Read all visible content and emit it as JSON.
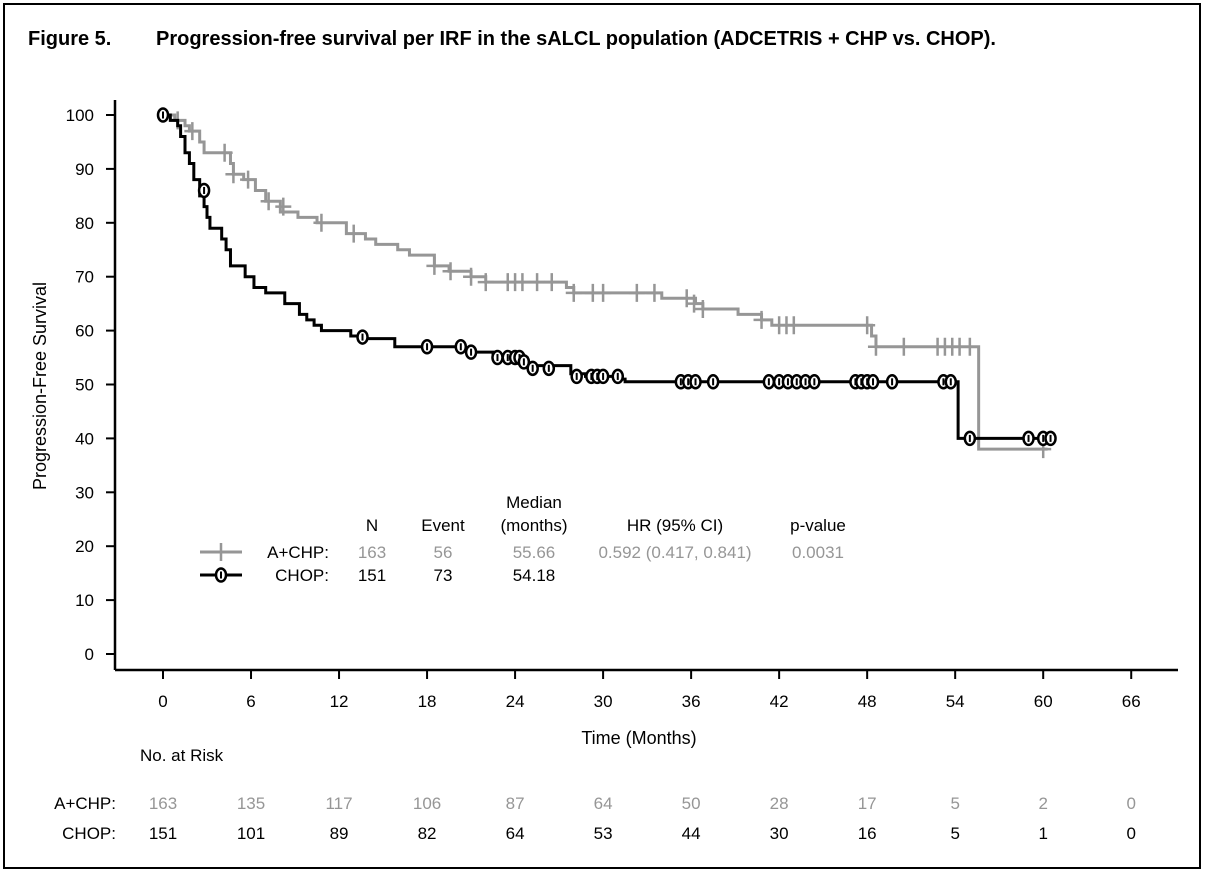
{
  "figure": {
    "label": "Figure 5.",
    "title": "Progression-free survival per IRF in the sALCL population (ADCETRIS + CHP vs. CHOP)."
  },
  "colors": {
    "achp": "#969696",
    "chop": "#000000"
  },
  "chart_data": {
    "type": "line",
    "subtype": "kaplan-meier",
    "xlabel": "Time (Months)",
    "ylabel": "Progression-Free Survival",
    "xlim": [
      0,
      66
    ],
    "ylim": [
      0,
      100
    ],
    "xticks": [
      0,
      6,
      12,
      18,
      24,
      30,
      36,
      42,
      48,
      54,
      60,
      66
    ],
    "yticks": [
      0,
      10,
      20,
      30,
      40,
      50,
      60,
      70,
      80,
      90,
      100
    ],
    "series": [
      {
        "name": "A+CHP",
        "color": "#969696",
        "marker": "plus",
        "steps": [
          [
            0,
            100
          ],
          [
            0.8,
            99
          ],
          [
            1.5,
            98
          ],
          [
            1.8,
            97
          ],
          [
            2.5,
            95
          ],
          [
            2.8,
            93
          ],
          [
            4.6,
            91
          ],
          [
            4.8,
            89
          ],
          [
            5.5,
            88
          ],
          [
            6.3,
            86
          ],
          [
            7,
            84
          ],
          [
            8,
            82
          ],
          [
            9.2,
            81
          ],
          [
            10.5,
            80
          ],
          [
            12.5,
            78
          ],
          [
            13.8,
            77
          ],
          [
            14.5,
            76
          ],
          [
            16,
            75
          ],
          [
            16.8,
            74
          ],
          [
            18.5,
            72
          ],
          [
            19.5,
            71
          ],
          [
            21,
            70
          ],
          [
            22,
            69
          ],
          [
            27.5,
            68
          ],
          [
            28,
            67
          ],
          [
            34,
            66
          ],
          [
            36.3,
            65
          ],
          [
            36.8,
            64
          ],
          [
            39.2,
            63
          ],
          [
            40.8,
            62
          ],
          [
            41.5,
            61
          ],
          [
            48.3,
            59
          ],
          [
            48.6,
            57
          ],
          [
            55.6,
            38
          ],
          [
            60.3,
            38
          ]
        ],
        "censors": [
          [
            1,
            99
          ],
          [
            2,
            97
          ],
          [
            4.2,
            93
          ],
          [
            4.8,
            89
          ],
          [
            5.8,
            88
          ],
          [
            7.2,
            84
          ],
          [
            8.2,
            83
          ],
          [
            10.8,
            80
          ],
          [
            13,
            78
          ],
          [
            18.5,
            72
          ],
          [
            19.6,
            71
          ],
          [
            21,
            70
          ],
          [
            22,
            69
          ],
          [
            23.5,
            69
          ],
          [
            24,
            69
          ],
          [
            24.5,
            69
          ],
          [
            25.5,
            69
          ],
          [
            26.5,
            69
          ],
          [
            28,
            67
          ],
          [
            29.3,
            67
          ],
          [
            30,
            67
          ],
          [
            32.3,
            67
          ],
          [
            33.5,
            67
          ],
          [
            35.7,
            66
          ],
          [
            36.2,
            65
          ],
          [
            36.8,
            64
          ],
          [
            40.8,
            62
          ],
          [
            42,
            61
          ],
          [
            42.5,
            61
          ],
          [
            43,
            61
          ],
          [
            48,
            61
          ],
          [
            48.6,
            57
          ],
          [
            50.5,
            57
          ],
          [
            52.8,
            57
          ],
          [
            53.3,
            57
          ],
          [
            53.8,
            57
          ],
          [
            54.3,
            57
          ],
          [
            55,
            57
          ],
          [
            60,
            38
          ]
        ]
      },
      {
        "name": "CHOP",
        "color": "#000000",
        "marker": "circle",
        "steps": [
          [
            0,
            100
          ],
          [
            0.5,
            99
          ],
          [
            1,
            98
          ],
          [
            1.2,
            96
          ],
          [
            1.5,
            93
          ],
          [
            1.8,
            91
          ],
          [
            2.1,
            88
          ],
          [
            2.5,
            85
          ],
          [
            2.8,
            83
          ],
          [
            3,
            81
          ],
          [
            3.2,
            79
          ],
          [
            4,
            77
          ],
          [
            4.3,
            75
          ],
          [
            4.6,
            72
          ],
          [
            5.6,
            70
          ],
          [
            6.2,
            68
          ],
          [
            7,
            67
          ],
          [
            8.3,
            65
          ],
          [
            9.3,
            63
          ],
          [
            9.8,
            62
          ],
          [
            10.3,
            61
          ],
          [
            10.8,
            60
          ],
          [
            12.8,
            59
          ],
          [
            13.5,
            58.5
          ],
          [
            15.8,
            57
          ],
          [
            20.5,
            56.5
          ],
          [
            21,
            56
          ],
          [
            22.5,
            55
          ],
          [
            24.8,
            53.5
          ],
          [
            27.8,
            52
          ],
          [
            28.8,
            51.5
          ],
          [
            31,
            51
          ],
          [
            31.5,
            50.5
          ],
          [
            54.2,
            40
          ],
          [
            60.3,
            40
          ]
        ],
        "censors": [
          [
            0,
            100
          ],
          [
            2.8,
            86
          ],
          [
            13.6,
            58.8
          ],
          [
            18,
            57
          ],
          [
            20.3,
            57
          ],
          [
            21,
            56
          ],
          [
            22.8,
            55
          ],
          [
            23.5,
            55
          ],
          [
            24,
            55
          ],
          [
            24.3,
            55
          ],
          [
            24.6,
            54.2
          ],
          [
            25.2,
            53
          ],
          [
            26.3,
            53
          ],
          [
            28.2,
            51.5
          ],
          [
            29.2,
            51.5
          ],
          [
            29.6,
            51.5
          ],
          [
            30,
            51.5
          ],
          [
            31,
            51.5
          ],
          [
            35.3,
            50.5
          ],
          [
            35.8,
            50.5
          ],
          [
            36.3,
            50.5
          ],
          [
            37.5,
            50.5
          ],
          [
            41.3,
            50.5
          ],
          [
            42,
            50.5
          ],
          [
            42.6,
            50.5
          ],
          [
            43.2,
            50.5
          ],
          [
            43.8,
            50.5
          ],
          [
            44.4,
            50.5
          ],
          [
            47.2,
            50.5
          ],
          [
            47.6,
            50.5
          ],
          [
            48,
            50.5
          ],
          [
            48.4,
            50.5
          ],
          [
            49.7,
            50.5
          ],
          [
            53.2,
            50.5
          ],
          [
            53.7,
            50.5
          ],
          [
            55,
            40
          ],
          [
            59,
            40
          ],
          [
            60,
            40
          ],
          [
            60.5,
            40
          ]
        ]
      }
    ],
    "stats_table": {
      "headers": [
        "N",
        "Event",
        "Median",
        "(months)",
        "HR (95% CI)",
        "p-value"
      ],
      "rows": [
        {
          "label": "A+CHP:",
          "n": "163",
          "event": "56",
          "median": "55.66",
          "hr": "0.592 (0.417, 0.841)",
          "p": "0.0031",
          "color": "#969696"
        },
        {
          "label": "CHOP:",
          "n": "151",
          "event": "73",
          "median": "54.18",
          "hr": "",
          "p": "",
          "color": "#000000"
        }
      ]
    },
    "at_risk": {
      "title": "No. at Risk",
      "times": [
        0,
        6,
        12,
        18,
        24,
        30,
        36,
        42,
        48,
        54,
        60,
        66
      ],
      "rows": [
        {
          "label": "A+CHP:",
          "values": [
            "163",
            "135",
            "117",
            "106",
            "87",
            "64",
            "50",
            "28",
            "17",
            "5",
            "2",
            "0"
          ],
          "color": "#969696"
        },
        {
          "label": "CHOP:",
          "values": [
            "151",
            "101",
            "89",
            "82",
            "64",
            "53",
            "44",
            "30",
            "16",
            "5",
            "1",
            "0"
          ],
          "color": "#000000"
        }
      ]
    }
  }
}
